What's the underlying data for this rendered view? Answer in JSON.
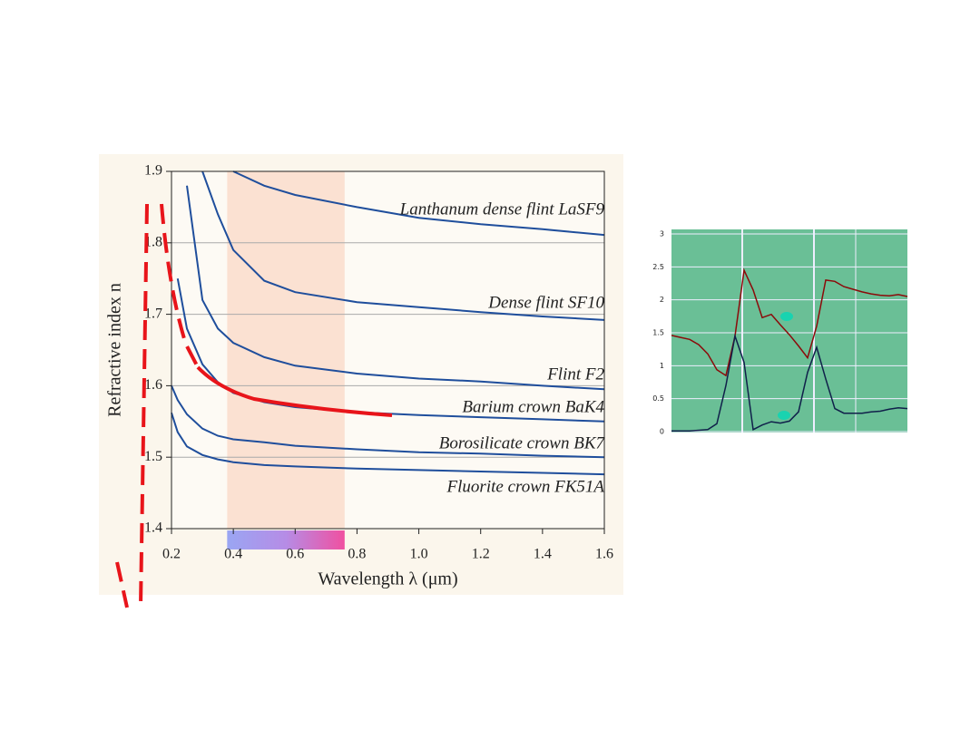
{
  "chart_data": [
    {
      "type": "line",
      "x_label": "Wavelength λ (μm)",
      "y_label": "Refractive index n",
      "xlim": [
        0.2,
        1.6
      ],
      "ylim": [
        1.4,
        1.9
      ],
      "xticks": [
        0.2,
        0.4,
        0.6,
        0.8,
        {
          "value": 1,
          "label": "1.0"
        },
        1.2,
        1.4,
        1.6
      ],
      "yticks": [
        1.4,
        1.5,
        1.6,
        1.7,
        1.8,
        1.9
      ],
      "grid": true,
      "visible_band": [
        0.38,
        0.76
      ],
      "x": [
        0.2,
        0.22,
        0.25,
        0.3,
        0.35,
        0.4,
        0.5,
        0.6,
        0.8,
        1.0,
        1.2,
        1.4,
        1.6
      ],
      "series": [
        {
          "name": "Lanthanum dense flint LaSF9",
          "color": "#1f4e9c",
          "values": [
            null,
            null,
            null,
            null,
            null,
            1.9,
            1.88,
            1.867,
            1.85,
            1.835,
            1.826,
            1.819,
            1.811
          ]
        },
        {
          "name": "Dense flint SF10",
          "color": "#1f4e9c",
          "values": [
            null,
            null,
            null,
            1.9,
            1.84,
            1.79,
            1.747,
            1.731,
            1.717,
            1.71,
            1.703,
            1.697,
            1.692
          ]
        },
        {
          "name": "Flint F2",
          "color": "#1f4e9c",
          "values": [
            null,
            null,
            1.88,
            1.72,
            1.68,
            1.66,
            1.64,
            1.628,
            1.617,
            1.61,
            1.606,
            1.6,
            1.595
          ]
        },
        {
          "name": "Barium crown BaK4",
          "color": "#1f4e9c",
          "values": [
            null,
            1.75,
            1.68,
            1.63,
            1.605,
            1.59,
            1.577,
            1.57,
            1.563,
            1.559,
            1.556,
            1.553,
            1.55
          ]
        },
        {
          "name": "Borosilicate crown BK7",
          "color": "#1f4e9c",
          "values": [
            1.6,
            1.58,
            1.56,
            1.54,
            1.53,
            1.525,
            1.521,
            1.516,
            1.511,
            1.507,
            1.505,
            1.502,
            1.5
          ]
        },
        {
          "name": "Fluorite crown FK51A",
          "color": "#1f4e9c",
          "values": [
            1.562,
            1.535,
            1.515,
            1.503,
            1.497,
            1.493,
            1.489,
            1.487,
            1.484,
            1.482,
            1.48,
            1.478,
            1.476
          ]
        }
      ]
    },
    {
      "type": "line",
      "ylim": [
        0,
        3
      ],
      "yticks": [
        0,
        0.5,
        1,
        1.5,
        2,
        2.5,
        3
      ],
      "grid": true,
      "series": [
        {
          "color": "#8b0a0a",
          "values": [
            1.46,
            1.43,
            1.4,
            1.32,
            1.18,
            0.94,
            0.85,
            1.45,
            2.45,
            2.15,
            1.73,
            1.78,
            1.62,
            1.47,
            1.3,
            1.12,
            1.6,
            2.3,
            2.28,
            2.2,
            2.16,
            2.12,
            2.09,
            2.07,
            2.06,
            2.08,
            2.05
          ]
        },
        {
          "color": "#10204a",
          "values": [
            0.01,
            0.01,
            0.01,
            0.02,
            0.03,
            0.12,
            0.7,
            1.45,
            1.05,
            0.03,
            0.1,
            0.15,
            0.13,
            0.16,
            0.3,
            0.9,
            1.28,
            0.8,
            0.35,
            0.28,
            0.28,
            0.28,
            0.3,
            0.31,
            0.34,
            0.36,
            0.35
          ]
        }
      ]
    }
  ]
}
